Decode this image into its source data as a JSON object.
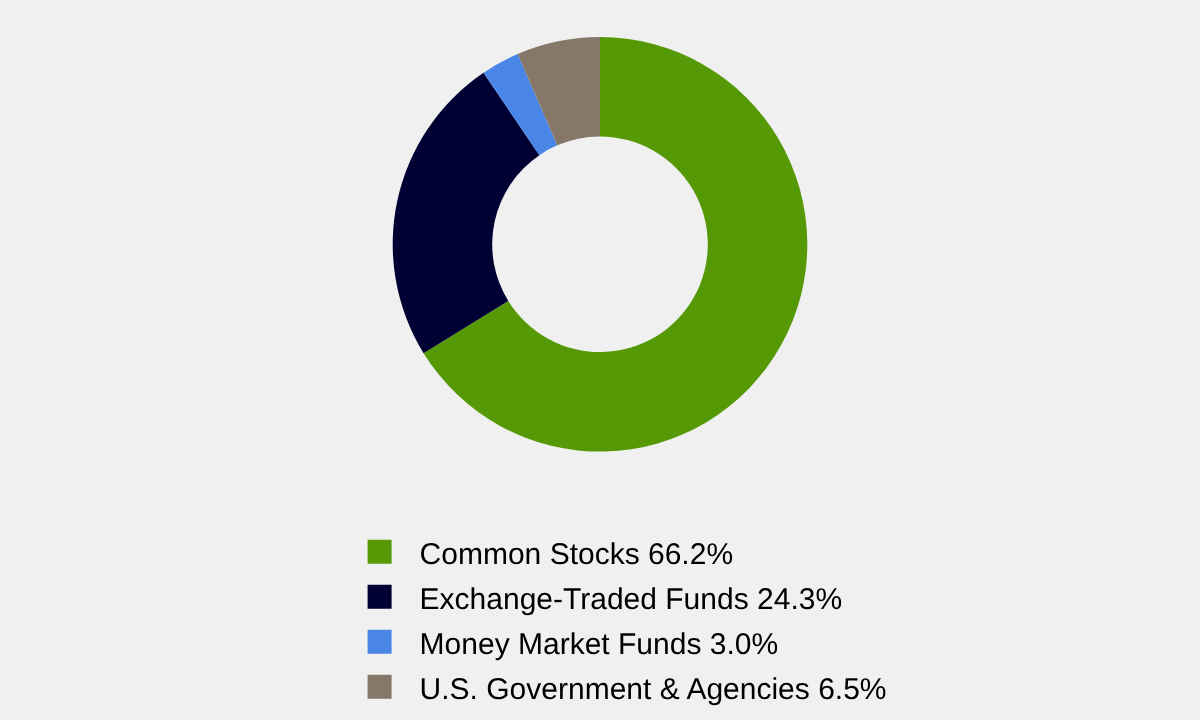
{
  "chart_data": {
    "type": "donut",
    "categories": [
      "Common Stocks",
      "Exchange-Traded Funds",
      "Money Market Funds",
      "U.S. Government & Agencies"
    ],
    "values": [
      66.2,
      24.3,
      3.0,
      6.5
    ],
    "value_labels": [
      "66.2%",
      "24.3%",
      "3.0%",
      "6.5%"
    ],
    "colors": [
      "#559a06",
      "#000033",
      "#4a86e8",
      "#857868"
    ],
    "legend": "bottom"
  }
}
